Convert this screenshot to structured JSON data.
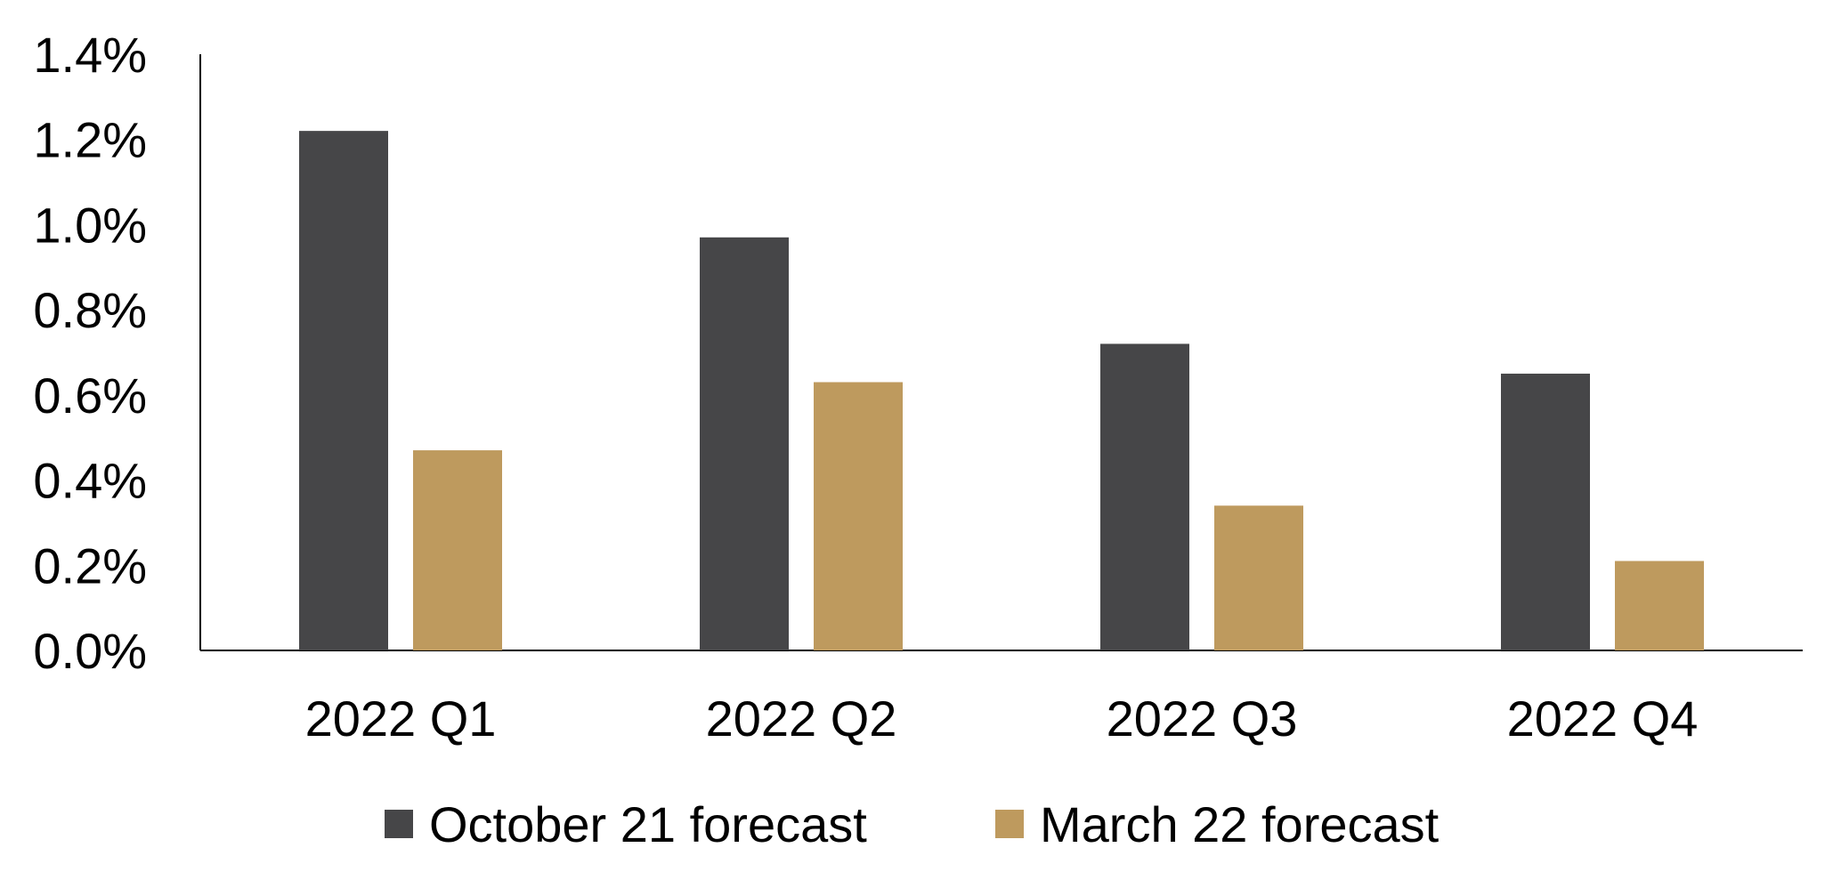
{
  "chart_data": {
    "type": "bar",
    "title": "",
    "xlabel": "",
    "ylabel": "",
    "categories": [
      "2022 Q1",
      "2022 Q2",
      "2022 Q3",
      "2022 Q4"
    ],
    "series": [
      {
        "name": "October 21 forecast",
        "color": "#464648",
        "values": [
          1.22,
          0.97,
          0.72,
          0.65
        ]
      },
      {
        "name": "March 22 forecast",
        "color": "#be9a5e",
        "values": [
          0.47,
          0.63,
          0.34,
          0.21
        ]
      }
    ],
    "ylim": [
      0,
      1.4
    ],
    "yticks": [
      0.0,
      0.2,
      0.4,
      0.6,
      0.8,
      1.0,
      1.2,
      1.4
    ],
    "ytick_labels": [
      "0.0%",
      "0.2%",
      "0.4%",
      "0.6%",
      "0.8%",
      "1.0%",
      "1.2%",
      "1.4%"
    ],
    "value_unit": "%",
    "grid": false,
    "legend_position": "bottom"
  }
}
